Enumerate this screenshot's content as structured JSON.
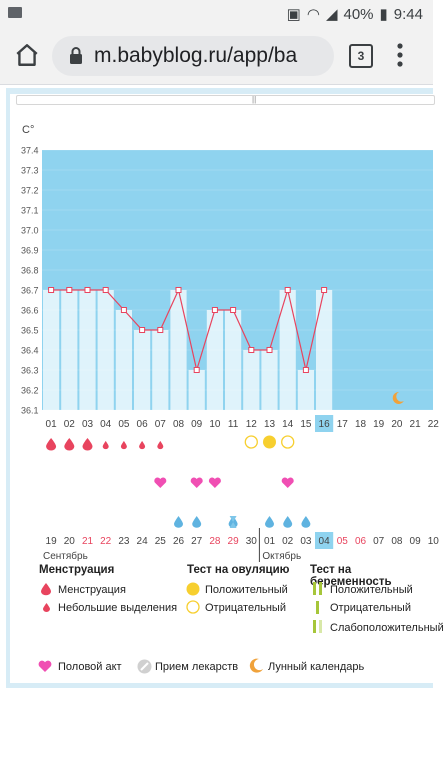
{
  "status_bar": {
    "battery": "40%",
    "time": "9:44"
  },
  "browser": {
    "url": "m.babyblog.ru/app/ba",
    "tab_count": "3"
  },
  "chart_data": {
    "type": "line",
    "ylabel": "C°",
    "ylim": [
      36.1,
      37.4
    ],
    "yticks": [
      "37.4",
      "37.3",
      "37.2",
      "37.1",
      "37.0",
      "36.9",
      "36.8",
      "36.7",
      "36.6",
      "36.5",
      "36.4",
      "36.3",
      "36.2",
      "36.1"
    ],
    "cycle_days": [
      "01",
      "02",
      "03",
      "04",
      "05",
      "06",
      "07",
      "08",
      "09",
      "10",
      "11",
      "12",
      "13",
      "14",
      "15",
      "16",
      "17",
      "18",
      "19",
      "20",
      "21",
      "22"
    ],
    "current_day": "16",
    "temperatures": [
      36.7,
      36.7,
      36.7,
      36.7,
      36.6,
      36.5,
      36.5,
      36.7,
      36.3,
      36.6,
      36.6,
      36.4,
      36.4,
      36.7,
      36.3,
      36.7
    ],
    "dates": [
      "19",
      "20",
      "21",
      "22",
      "23",
      "24",
      "25",
      "26",
      "27",
      "28",
      "29",
      "30",
      "01",
      "02",
      "03",
      "04",
      "05",
      "06",
      "07",
      "08",
      "09",
      "10"
    ],
    "red_dates": [
      "21",
      "22",
      "28",
      "29",
      "05",
      "06"
    ],
    "current_date": "04",
    "months": [
      "Сентябрь",
      "Октябрь"
    ],
    "menstruation": [
      "big",
      "big",
      "big",
      "small",
      "small",
      "small",
      "small"
    ],
    "ovulation_tests": {
      "12": "negative",
      "13": "positive",
      "14": "negative"
    },
    "intercourse_days": [
      "07",
      "09",
      "10",
      "14"
    ],
    "fluid_days": [
      "08",
      "09",
      "11",
      "13",
      "14",
      "15"
    ],
    "hourglass_day": "11",
    "moon_day": "20"
  },
  "legend": {
    "menstruation_title": "Менструация",
    "menstruation_items": [
      "Менструация",
      "Небольшие выделения"
    ],
    "ovulation_title": "Тест на овуляцию",
    "ovulation_items": [
      "Положительный",
      "Отрицательный"
    ],
    "pregnancy_title": "Тест на беременность",
    "pregnancy_items": [
      "Положительный",
      "Отрицательный",
      "Слабоположительный"
    ],
    "bottom_items": [
      "Половой акт",
      "Прием лекарств",
      "Лунный календарь"
    ]
  },
  "colors": {
    "accent": "#8fd3ef",
    "line": "#e8445e",
    "today": "#8fd3ef"
  }
}
